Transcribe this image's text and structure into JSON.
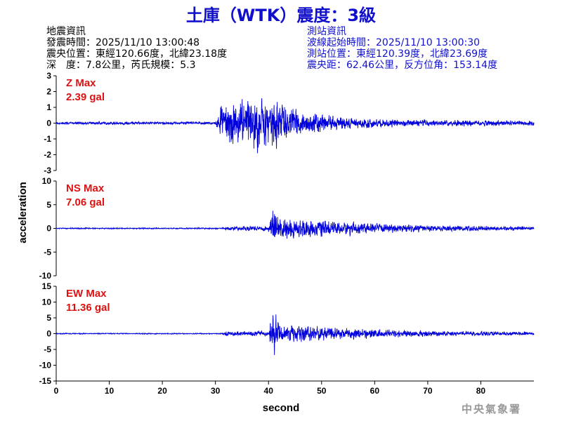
{
  "title": "土庫（WTK）震度：3級",
  "earthquake_info": {
    "heading": "地震資訊",
    "time": "發震時間：2025/11/10 13:00:48",
    "location": "震央位置：東經120.66度，北緯23.18度",
    "depth_magnitude": "深　度：7.8公里，芮氏規模：5.3"
  },
  "station_info": {
    "heading": "測站資訊",
    "wave_start": "波線起始時間：2025/11/10 13:00:30",
    "location": "測站位置：東經120.39度，北緯23.69度",
    "distance": "震央距：62.46公里，反方位角：153.14度"
  },
  "agency": "中央氣象署",
  "colors": {
    "title": "#1010cc",
    "trace": "#0000dd",
    "max_label": "#dd1111",
    "station_info": "#1010cc"
  },
  "chart_data": {
    "type": "line",
    "xlabel": "second",
    "ylabel": "acceleration",
    "xlim": [
      0,
      90
    ],
    "xticks": [
      0,
      10,
      20,
      30,
      40,
      50,
      60,
      70,
      80
    ],
    "panels": [
      {
        "component": "Z",
        "max_text": "Z Max",
        "max_value": "2.39 gal",
        "ylim": [
          -3,
          3
        ],
        "yticks": [
          3,
          2,
          1,
          0,
          -1,
          -2,
          -3
        ],
        "envelope": [
          {
            "t": 0,
            "amp": 0.12
          },
          {
            "t": 30,
            "amp": 0.12
          },
          {
            "t": 31,
            "amp": 1.5
          },
          {
            "t": 35,
            "amp": 2.0
          },
          {
            "t": 41,
            "amp": 2.1
          },
          {
            "t": 45,
            "amp": 1.0
          },
          {
            "t": 55,
            "amp": 0.45
          },
          {
            "t": 65,
            "amp": 0.28
          },
          {
            "t": 90,
            "amp": 0.2
          }
        ]
      },
      {
        "component": "NS",
        "max_text": "NS Max",
        "max_value": "7.06 gal",
        "ylim": [
          -10,
          10
        ],
        "yticks": [
          10,
          5,
          0,
          -5,
          -10
        ],
        "envelope": [
          {
            "t": 0,
            "amp": 0.15
          },
          {
            "t": 31,
            "amp": 0.15
          },
          {
            "t": 32,
            "amp": 0.5
          },
          {
            "t": 40,
            "amp": 0.8
          },
          {
            "t": 40.8,
            "amp": 6.5
          },
          {
            "t": 42,
            "amp": 3.0
          },
          {
            "t": 50,
            "amp": 2.2
          },
          {
            "t": 60,
            "amp": 1.3
          },
          {
            "t": 70,
            "amp": 0.9
          },
          {
            "t": 90,
            "amp": 0.5
          }
        ]
      },
      {
        "component": "EW",
        "max_text": "EW Max",
        "max_value": "11.36 gal",
        "ylim": [
          -15,
          15
        ],
        "yticks": [
          15,
          10,
          5,
          0,
          -5,
          -10,
          -15
        ],
        "envelope": [
          {
            "t": 0,
            "amp": 0.2
          },
          {
            "t": 31,
            "amp": 0.2
          },
          {
            "t": 32,
            "amp": 0.9
          },
          {
            "t": 40,
            "amp": 1.1
          },
          {
            "t": 40.7,
            "amp": 11.36
          },
          {
            "t": 42,
            "amp": 4.0
          },
          {
            "t": 50,
            "amp": 2.8
          },
          {
            "t": 60,
            "amp": 1.8
          },
          {
            "t": 70,
            "amp": 1.2
          },
          {
            "t": 90,
            "amp": 0.7
          }
        ]
      }
    ]
  }
}
